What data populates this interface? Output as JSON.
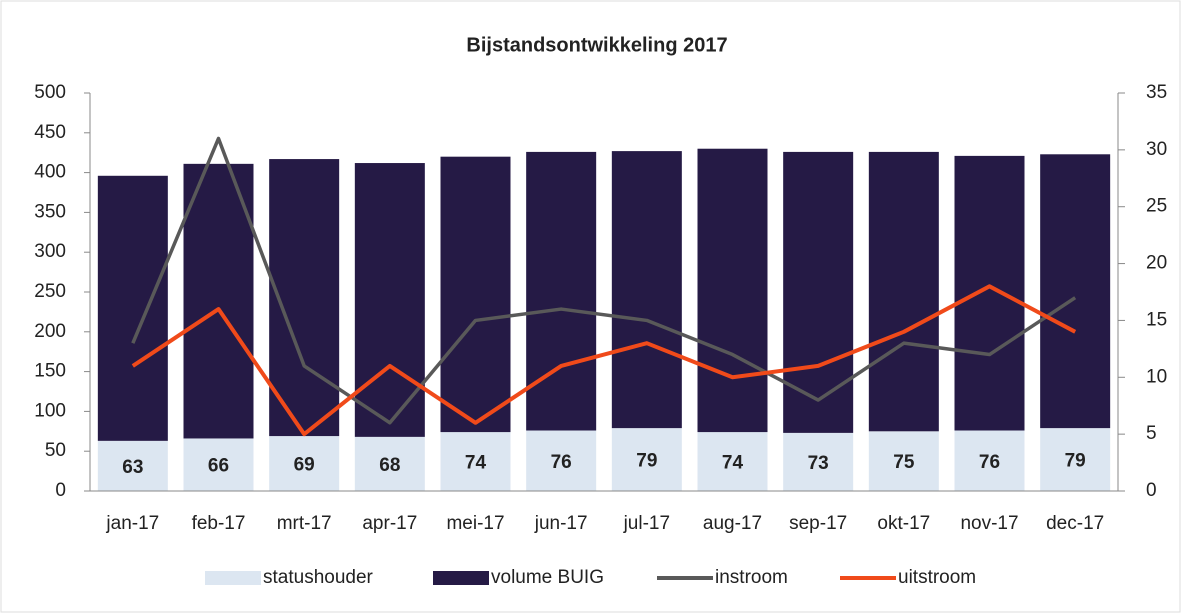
{
  "chart_data": {
    "type": "bar",
    "title": "Bijstandsontwikkeling 2017",
    "categories": [
      "jan-17",
      "feb-17",
      "mrt-17",
      "apr-17",
      "mei-17",
      "jun-17",
      "jul-17",
      "aug-17",
      "sep-17",
      "okt-17",
      "nov-17",
      "dec-17"
    ],
    "series": [
      {
        "name": "statushouder",
        "color": "#dce6f1",
        "type": "bar",
        "values": [
          63,
          66,
          69,
          68,
          74,
          76,
          79,
          74,
          73,
          75,
          76,
          79
        ]
      },
      {
        "name": "volume BUIG",
        "color": "#251a45",
        "type": "bar",
        "values": [
          333,
          345,
          348,
          344,
          346,
          350,
          348,
          356,
          353,
          351,
          345,
          344
        ]
      },
      {
        "name": "instroom",
        "color": "#595959",
        "type": "line",
        "axis": "y2",
        "values": [
          13,
          31,
          11,
          6,
          15,
          16,
          15,
          12,
          8,
          13,
          12,
          17
        ]
      },
      {
        "name": "uitstroom",
        "color": "#f04a1a",
        "type": "line",
        "axis": "y2",
        "values": [
          11,
          16,
          5,
          11,
          6,
          11,
          13,
          10,
          11,
          14,
          18,
          14
        ]
      }
    ],
    "ylim": [
      0,
      500
    ],
    "yticks": [
      0,
      50,
      100,
      150,
      200,
      250,
      300,
      350,
      400,
      450,
      500
    ],
    "y2lim": [
      0,
      35
    ],
    "y2ticks": [
      0,
      5,
      10,
      15,
      20,
      25,
      30,
      35
    ],
    "stacked": true,
    "legend": "bottom"
  }
}
